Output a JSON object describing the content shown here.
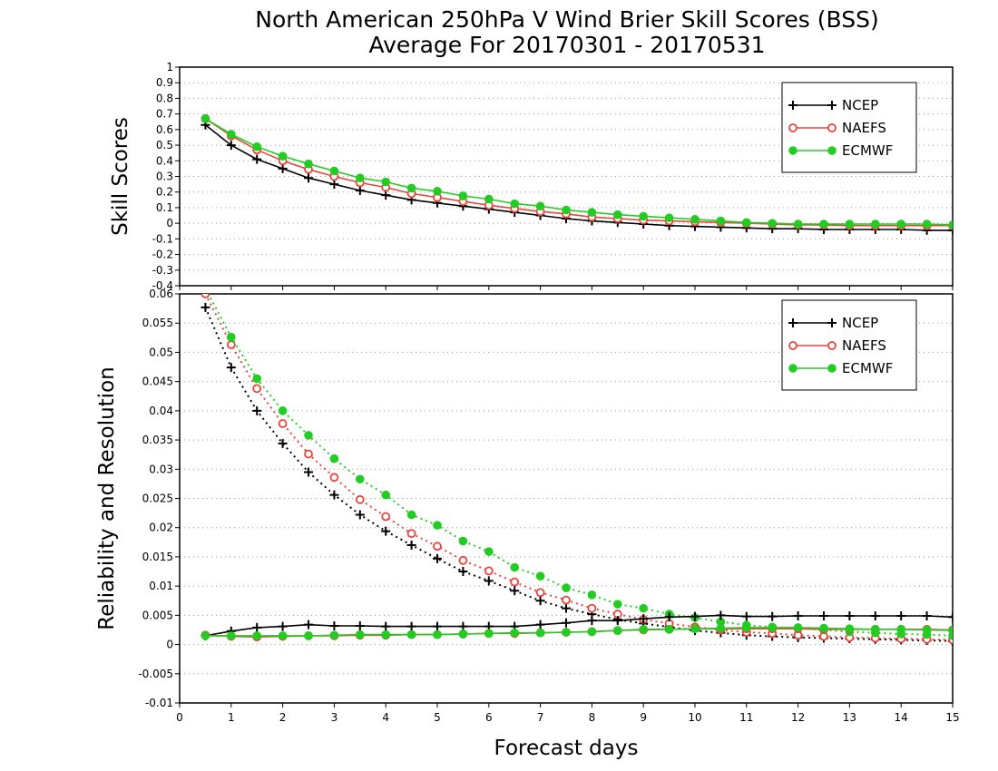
{
  "title_line1": "North American 250hPa V Wind Brier Skill Scores (BSS)",
  "title_line2": "Average For 20170301 - 20170531",
  "xlabel": "Forecast days",
  "colors": {
    "ncep": "#000000",
    "naefs": "#e8453c",
    "ecmwf": "#22cc22"
  },
  "chart_data": [
    {
      "type": "line",
      "ylabel": "Skill Scores",
      "ylim": [
        -0.4,
        1
      ],
      "xlim": [
        0,
        15
      ],
      "yticks": [
        "-0.4",
        "-0.3",
        "-0.2",
        "-0.1",
        "0",
        "0.1",
        "0.2",
        "0.3",
        "0.4",
        "0.5",
        "0.6",
        "0.7",
        "0.8",
        "0.9",
        "1"
      ],
      "xticks": [
        "0",
        "1",
        "2",
        "3",
        "4",
        "5",
        "6",
        "7",
        "8",
        "9",
        "10",
        "11",
        "12",
        "13",
        "14",
        "15"
      ],
      "legend": "top-right",
      "grid": true,
      "x": [
        0.5,
        1,
        1.5,
        2,
        2.5,
        3,
        3.5,
        4,
        4.5,
        5,
        5.5,
        6,
        6.5,
        7,
        7.5,
        8,
        8.5,
        9,
        9.5,
        10,
        10.5,
        11,
        11.5,
        12,
        12.5,
        13,
        13.5,
        14,
        14.5,
        15
      ],
      "series": [
        {
          "name": "NCEP",
          "marker": "plus",
          "values": [
            0.63,
            0.5,
            0.41,
            0.35,
            0.29,
            0.25,
            0.21,
            0.18,
            0.15,
            0.13,
            0.11,
            0.09,
            0.07,
            0.05,
            0.03,
            0.015,
            0.005,
            -0.005,
            -0.015,
            -0.02,
            -0.025,
            -0.03,
            -0.035,
            -0.035,
            -0.04,
            -0.04,
            -0.04,
            -0.04,
            -0.045,
            -0.045
          ]
        },
        {
          "name": "NAEFS",
          "marker": "open-circle",
          "values": [
            0.67,
            0.56,
            0.47,
            0.4,
            0.345,
            0.3,
            0.26,
            0.23,
            0.19,
            0.165,
            0.14,
            0.115,
            0.095,
            0.075,
            0.06,
            0.04,
            0.03,
            0.02,
            0.015,
            0.01,
            0.005,
            0,
            -0.005,
            -0.01,
            -0.01,
            -0.015,
            -0.015,
            -0.015,
            -0.015,
            -0.015
          ]
        },
        {
          "name": "ECMWF",
          "marker": "filled-circle",
          "values": [
            0.67,
            0.57,
            0.49,
            0.43,
            0.38,
            0.335,
            0.29,
            0.265,
            0.225,
            0.205,
            0.175,
            0.155,
            0.125,
            0.11,
            0.085,
            0.07,
            0.055,
            0.045,
            0.035,
            0.025,
            0.015,
            0.005,
            0,
            -0.005,
            -0.005,
            -0.005,
            -0.005,
            -0.005,
            -0.005,
            -0.01
          ]
        }
      ]
    },
    {
      "type": "line",
      "ylabel": "Reliability and Resolution",
      "ylim": [
        -0.01,
        0.06
      ],
      "xlim": [
        0,
        15
      ],
      "yticks": [
        "-0.01",
        "-0.005",
        "0",
        "0.005",
        "0.01",
        "0.015",
        "0.02",
        "0.025",
        "0.03",
        "0.035",
        "0.04",
        "0.045",
        "0.05",
        "0.055",
        "0.06"
      ],
      "xticks": [
        "0",
        "1",
        "2",
        "3",
        "4",
        "5",
        "6",
        "7",
        "8",
        "9",
        "10",
        "11",
        "12",
        "13",
        "14",
        "15"
      ],
      "legend": "top-right",
      "grid": true,
      "x": [
        0.5,
        1,
        1.5,
        2,
        2.5,
        3,
        3.5,
        4,
        4.5,
        5,
        5.5,
        6,
        6.5,
        7,
        7.5,
        8,
        8.5,
        9,
        9.5,
        10,
        10.5,
        11,
        11.5,
        12,
        12.5,
        13,
        13.5,
        14,
        14.5,
        15
      ],
      "series": [
        {
          "name": "NCEP",
          "component": "reliability",
          "marker": "plus",
          "values": [
            0.0577,
            0.0474,
            0.04,
            0.0344,
            0.0295,
            0.0256,
            0.0222,
            0.0194,
            0.017,
            0.0147,
            0.0125,
            0.0109,
            0.0092,
            0.0075,
            0.0062,
            0.0052,
            0.0043,
            0.0036,
            0.003,
            0.0024,
            0.002,
            0.0016,
            0.0014,
            0.0012,
            0.0011,
            0.001,
            0.0009,
            0.0008,
            0.0007,
            0.0006
          ]
        },
        {
          "name": "NAEFS",
          "component": "reliability",
          "marker": "open-circle",
          "values": [
            0.06,
            0.0513,
            0.0438,
            0.0378,
            0.0326,
            0.0286,
            0.0248,
            0.0219,
            0.019,
            0.0168,
            0.0144,
            0.0126,
            0.0107,
            0.0089,
            0.0076,
            0.0062,
            0.0052,
            0.0043,
            0.0036,
            0.003,
            0.0025,
            0.0021,
            0.0019,
            0.0016,
            0.0014,
            0.0012,
            0.0011,
            0.001,
            0.0009,
            0.0008
          ]
        },
        {
          "name": "ECMWF",
          "component": "reliability",
          "marker": "filled-circle",
          "values": [
            0.061,
            0.0526,
            0.0455,
            0.04,
            0.0358,
            0.0318,
            0.0283,
            0.0256,
            0.0222,
            0.0204,
            0.0177,
            0.0159,
            0.0132,
            0.0117,
            0.0097,
            0.0085,
            0.0069,
            0.0062,
            0.0052,
            0.0046,
            0.0039,
            0.0033,
            0.003,
            0.0028,
            0.0025,
            0.0022,
            0.002,
            0.0018,
            0.0017,
            0.0015
          ]
        },
        {
          "name": "NCEP",
          "component": "resolution",
          "marker": "plus",
          "values": [
            0.0015,
            0.0023,
            0.0029,
            0.0031,
            0.0034,
            0.0032,
            0.0032,
            0.0031,
            0.0031,
            0.0031,
            0.0031,
            0.0031,
            0.0031,
            0.0034,
            0.0037,
            0.0041,
            0.0041,
            0.0044,
            0.0047,
            0.0048,
            0.005,
            0.0048,
            0.0048,
            0.0049,
            0.0049,
            0.0049,
            0.0049,
            0.0049,
            0.0049,
            0.0047
          ]
        },
        {
          "name": "NAEFS",
          "component": "resolution",
          "marker": "open-circle",
          "values": [
            0.0016,
            0.0014,
            0.0013,
            0.0014,
            0.0015,
            0.0015,
            0.0016,
            0.0016,
            0.0017,
            0.0017,
            0.0018,
            0.0019,
            0.0019,
            0.002,
            0.0021,
            0.0022,
            0.0024,
            0.0025,
            0.0026,
            0.0027,
            0.0027,
            0.0027,
            0.0027,
            0.0027,
            0.0026,
            0.0026,
            0.0026,
            0.0026,
            0.0026,
            0.0025
          ]
        },
        {
          "name": "ECMWF",
          "component": "resolution",
          "marker": "filled-circle",
          "values": [
            0.0015,
            0.0015,
            0.0015,
            0.0015,
            0.0015,
            0.0016,
            0.0017,
            0.0017,
            0.0017,
            0.0017,
            0.0018,
            0.0019,
            0.002,
            0.002,
            0.0021,
            0.0022,
            0.0024,
            0.0026,
            0.0026,
            0.0027,
            0.0028,
            0.0029,
            0.0029,
            0.0029,
            0.0028,
            0.0027,
            0.0026,
            0.0026,
            0.0025,
            0.0024
          ]
        }
      ]
    }
  ]
}
